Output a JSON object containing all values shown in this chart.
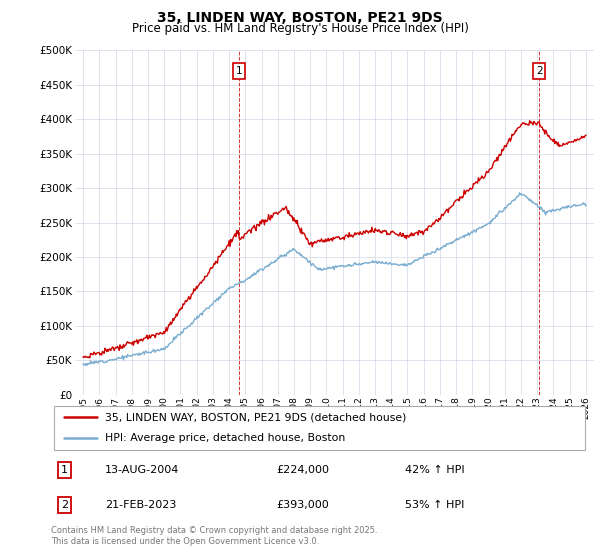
{
  "title": "35, LINDEN WAY, BOSTON, PE21 9DS",
  "subtitle": "Price paid vs. HM Land Registry's House Price Index (HPI)",
  "legend_label_red": "35, LINDEN WAY, BOSTON, PE21 9DS (detached house)",
  "legend_label_blue": "HPI: Average price, detached house, Boston",
  "annotation1_date": "13-AUG-2004",
  "annotation1_price": "£224,000",
  "annotation1_hpi": "42% ↑ HPI",
  "annotation2_date": "21-FEB-2023",
  "annotation2_price": "£393,000",
  "annotation2_hpi": "53% ↑ HPI",
  "footer": "Contains HM Land Registry data © Crown copyright and database right 2025.\nThis data is licensed under the Open Government Licence v3.0.",
  "red_color": "#cc0000",
  "blue_color": "#7aadcf",
  "sale1_year": 2004.62,
  "sale2_year": 2023.13,
  "ylim": [
    0,
    500000
  ],
  "yticks": [
    0,
    50000,
    100000,
    150000,
    200000,
    250000,
    300000,
    350000,
    400000,
    450000,
    500000
  ],
  "xstart": 1994.5,
  "xend": 2026.5
}
